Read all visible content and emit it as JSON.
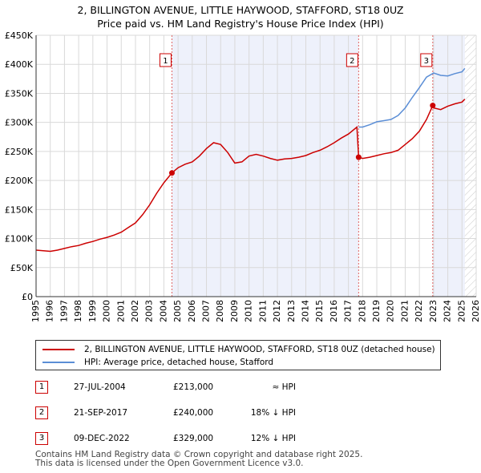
{
  "chart_data": {
    "type": "line",
    "title": "2, BILLINGTON AVENUE, LITTLE HAYWOOD, STAFFORD, ST18 0UZ",
    "subtitle": "Price paid vs. HM Land Registry's House Price Index (HPI)",
    "xlim": [
      1995,
      2026
    ],
    "ylim": [
      0,
      450000
    ],
    "x_ticks": [
      "1995",
      "1996",
      "1997",
      "1998",
      "1999",
      "2000",
      "2001",
      "2002",
      "2003",
      "2004",
      "2005",
      "2006",
      "2007",
      "2008",
      "2009",
      "2010",
      "2011",
      "2012",
      "2013",
      "2014",
      "2015",
      "2016",
      "2017",
      "2018",
      "2019",
      "2020",
      "2021",
      "2022",
      "2023",
      "2024",
      "2025",
      "2026"
    ],
    "y_ticks": [
      {
        "value": 0,
        "label": "£0"
      },
      {
        "value": 50000,
        "label": "£50K"
      },
      {
        "value": 100000,
        "label": "£100K"
      },
      {
        "value": 150000,
        "label": "£150K"
      },
      {
        "value": 200000,
        "label": "£200K"
      },
      {
        "value": 250000,
        "label": "£250K"
      },
      {
        "value": 300000,
        "label": "£300K"
      },
      {
        "value": 350000,
        "label": "£350K"
      },
      {
        "value": 400000,
        "label": "£400K"
      },
      {
        "value": 450000,
        "label": "£450K"
      }
    ],
    "grid": true,
    "series": [
      {
        "name": "2, BILLINGTON AVENUE, LITTLE HAYWOOD, STAFFORD, ST18 0UZ (detached house)",
        "color": "#cc0000",
        "x": [
          1995.0,
          1995.5,
          1996.0,
          1996.5,
          1997.0,
          1997.5,
          1998.0,
          1998.5,
          1999.0,
          1999.5,
          2000.0,
          2000.5,
          2001.0,
          2001.5,
          2002.0,
          2002.5,
          2003.0,
          2003.5,
          2004.0,
          2004.57,
          2005.0,
          2005.5,
          2006.0,
          2006.5,
          2007.0,
          2007.5,
          2008.0,
          2008.5,
          2009.0,
          2009.5,
          2010.0,
          2010.5,
          2011.0,
          2011.5,
          2012.0,
          2012.5,
          2013.0,
          2013.5,
          2014.0,
          2014.5,
          2015.0,
          2015.5,
          2016.0,
          2016.5,
          2017.0,
          2017.6,
          2017.72,
          2018.0,
          2018.5,
          2019.0,
          2019.5,
          2020.0,
          2020.5,
          2021.0,
          2021.5,
          2022.0,
          2022.5,
          2022.94,
          2023.0,
          2023.5,
          2024.0,
          2024.5,
          2025.0,
          2025.2
        ],
        "values": [
          80000,
          79000,
          78000,
          80000,
          83000,
          86000,
          88000,
          92000,
          95000,
          99000,
          102000,
          106000,
          111000,
          119000,
          127000,
          141000,
          158000,
          178000,
          196000,
          213000,
          222000,
          228000,
          232000,
          242000,
          255000,
          265000,
          262000,
          248000,
          230000,
          232000,
          242000,
          245000,
          242000,
          238000,
          235000,
          237000,
          238000,
          240000,
          243000,
          248000,
          252000,
          258000,
          265000,
          273000,
          280000,
          292000,
          240000,
          238000,
          240000,
          243000,
          246000,
          248000,
          252000,
          262000,
          272000,
          285000,
          305000,
          329000,
          325000,
          322000,
          328000,
          332000,
          335000,
          340000
        ]
      },
      {
        "name": "HPI: Average price, detached house, Stafford",
        "color": "#5b8ed6",
        "x": [
          2017.72,
          2018.0,
          2018.5,
          2019.0,
          2019.5,
          2020.0,
          2020.5,
          2021.0,
          2021.5,
          2022.0,
          2022.5,
          2023.0,
          2023.5,
          2024.0,
          2024.5,
          2025.0,
          2025.2
        ],
        "values": [
          292000,
          292000,
          296000,
          301000,
          303000,
          305000,
          312000,
          325000,
          343000,
          360000,
          378000,
          385000,
          381000,
          380000,
          384000,
          387000,
          393000
        ]
      }
    ],
    "transactions": [
      {
        "label": "1",
        "x": 2004.57,
        "value": 213000,
        "date": "27-JUL-2004",
        "price": "£213,000",
        "hpi": "≈ HPI"
      },
      {
        "label": "2",
        "x": 2017.72,
        "value": 240000,
        "date": "21-SEP-2017",
        "price": "£240,000",
        "hpi": "18% ↓ HPI"
      },
      {
        "label": "3",
        "x": 2022.94,
        "value": 329000,
        "date": "09-DEC-2022",
        "price": "£329,000",
        "hpi": "12% ↓ HPI"
      }
    ]
  },
  "footer": {
    "line1": "Contains HM Land Registry data © Crown copyright and database right 2025.",
    "line2": "This data is licensed under the Open Government Licence v3.0."
  }
}
